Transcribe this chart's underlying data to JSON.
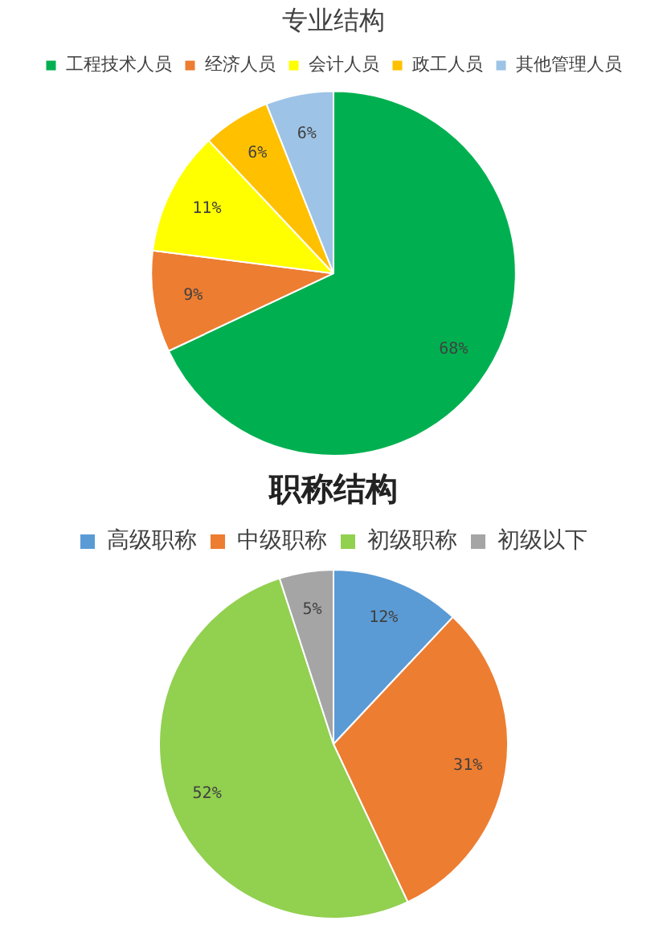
{
  "chart_data": [
    {
      "type": "pie",
      "title": "专业结构",
      "categories": [
        "工程技术人员",
        "经济人员",
        "会计人员",
        "政工人员",
        "其他管理人员"
      ],
      "values": [
        68,
        9,
        11,
        6,
        6
      ],
      "colors": [
        "#00b050",
        "#ed7d31",
        "#ffff00",
        "#ffc000",
        "#9dc3e6"
      ],
      "value_labels": [
        "68%",
        "9%",
        "11%",
        "6%",
        "6%"
      ],
      "legend": "top"
    },
    {
      "type": "pie",
      "title": "职称结构",
      "categories": [
        "高级职称",
        "中级职称",
        "初级职称",
        "初级以下"
      ],
      "values": [
        12,
        31,
        52,
        5
      ],
      "colors": [
        "#5b9bd5",
        "#ed7d31",
        "#92d050",
        "#a5a5a5"
      ],
      "value_labels": [
        "12%",
        "31%",
        "52%",
        "5%"
      ],
      "legend": "top"
    }
  ]
}
